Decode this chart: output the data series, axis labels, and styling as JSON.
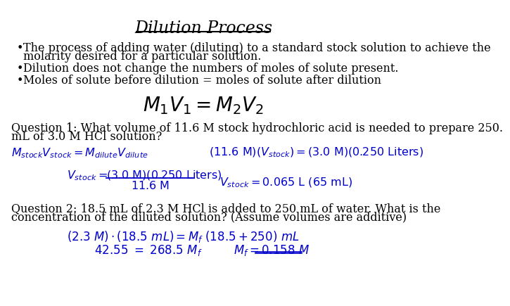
{
  "title": "Dilution Process",
  "bg_color": "#ffffff",
  "text_color": "#000000",
  "blue_color": "#0000cc",
  "bullet1_line1": "The process of adding water (diluting) to a standard stock solution to achieve the",
  "bullet1_line2": "molarity desired for a particular solution.",
  "bullet2": "Dilution does not change the numbers of moles of solute present.",
  "bullet3": "Moles of solute before dilution = moles of solute after dilution",
  "formula": "$M_1V_1 = M_2V_2$",
  "q1_line1": "Question 1: What volume of 11.6 M stock hydrochloric acid is needed to prepare 250.",
  "q1_line2": "mL of 3.0 M HCl solution?",
  "q2_line1": "Question 2: 18.5 mL of 2.3 M HCl is added to 250 mL of water. What is the",
  "q2_line2": "concentration of the diluted solution? (Assume volumes are additive)"
}
